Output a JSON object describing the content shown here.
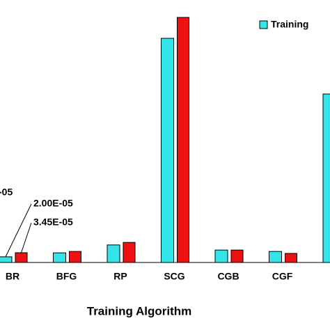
{
  "chart_data": {
    "type": "bar",
    "x_label": "Training Algorithm",
    "categories": [
      "BR",
      "BFG",
      "RP",
      "SCG",
      "CGB",
      "CGF",
      null
    ],
    "series": [
      {
        "name": "Training",
        "color": "#33e5ea",
        "values": [
          2e-05,
          3.4e-05,
          6.2e-05,
          0.000793,
          4.4e-05,
          3.9e-05,
          0.000596
        ],
        "value_labels": [
          "2.00E-05",
          null,
          null,
          null,
          null,
          null,
          null
        ]
      },
      {
        "color": "#ee1111",
        "values": [
          3.45e-05,
          3.9e-05,
          7.1e-05,
          0.000867,
          4.4e-05,
          3.2e-05,
          null
        ],
        "value_labels": [
          "3.45E-05",
          null,
          null,
          null,
          null,
          null,
          null
        ]
      }
    ],
    "annotations": [
      "-05"
    ]
  }
}
